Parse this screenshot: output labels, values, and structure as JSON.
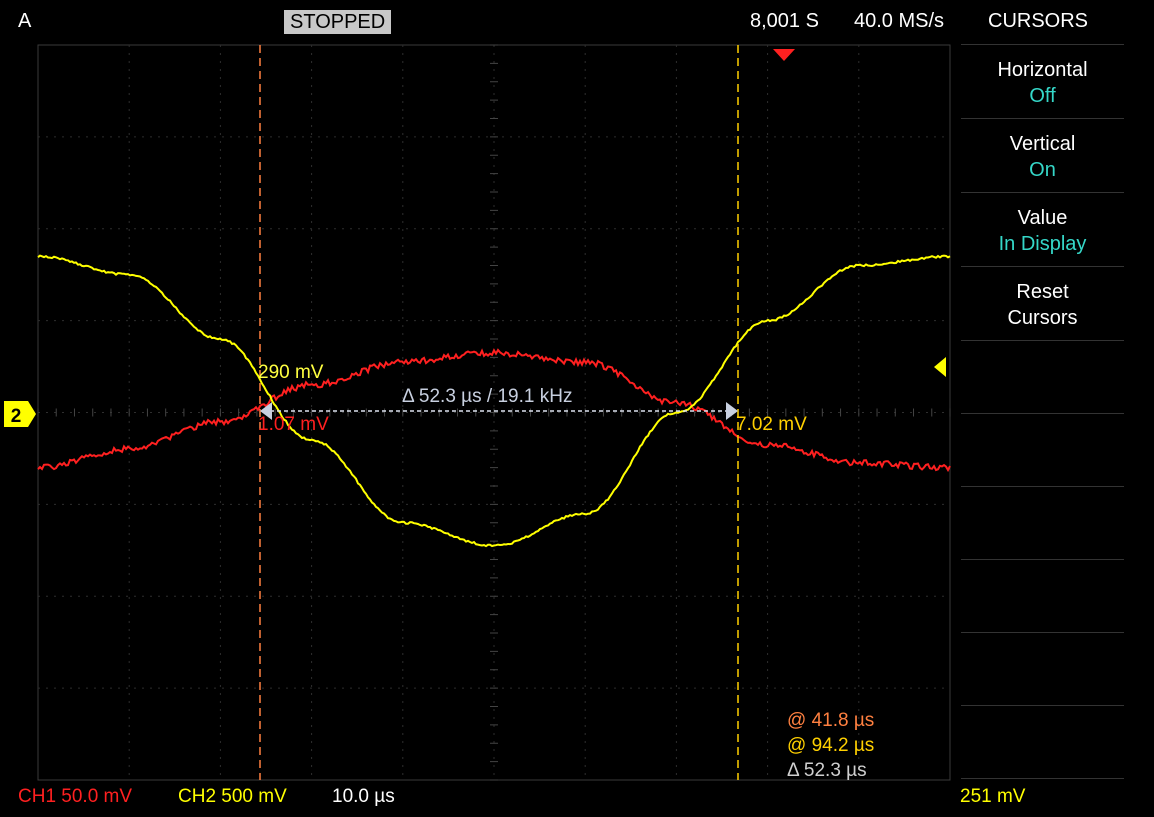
{
  "header": {
    "trigger_mode": "A",
    "run_state": "STOPPED",
    "sample_count": "8,001 S",
    "sample_rate": "40.0 MS/s",
    "menu_title": "CURSORS"
  },
  "menu": {
    "items": [
      {
        "label": "Horizontal",
        "value": "Off"
      },
      {
        "label": "Vertical",
        "value": "On"
      },
      {
        "label": "Value",
        "value": "In Display"
      },
      {
        "label": "Reset",
        "value": "Cursors"
      }
    ]
  },
  "readouts": {
    "cursor1_ch2": "290 mV",
    "cursor1_ch1": "1.07 mV",
    "cursor2_ch1": "7.02 mV",
    "delta_line": "Δ 52.3 µs / 19.1 kHz",
    "cursor1_time": "@ 41.8 µs",
    "cursor2_time": "@ 94.2 µs",
    "delta_time": "Δ 52.3 µs"
  },
  "footer": {
    "ch1_scale": "CH1 50.0 mV",
    "ch2_scale": "CH2 500 mV",
    "timebase": "10.0 µs",
    "trigger_level": "251 mV"
  },
  "channel_marker": "2",
  "colors": {
    "ch1": "#ff2020",
    "ch2": "#ffff00",
    "menu_value": "#35d7c8",
    "cursor1": "#ff8040",
    "cursor2": "#ffd000",
    "delta": "#c8d0e0"
  },
  "chart_data": {
    "type": "line",
    "series": [
      {
        "name": "CH1",
        "shape": "sine peak at center",
        "x_divisions": [
          0,
          1,
          2,
          3,
          4,
          5,
          6,
          7,
          8,
          9,
          10
        ],
        "y_divisions": [
          -0.6,
          -0.4,
          -0.1,
          0.3,
          0.55,
          0.65,
          0.55,
          0.1,
          -0.35,
          -0.55,
          -0.6
        ]
      },
      {
        "name": "CH2",
        "shape": "cosine trough at center",
        "x_divisions": [
          0,
          1,
          2,
          3,
          4,
          5,
          6,
          7,
          8,
          9,
          10
        ],
        "y_divisions": [
          1.7,
          1.5,
          0.8,
          -0.3,
          -1.2,
          -1.45,
          -1.1,
          0.0,
          1.0,
          1.6,
          1.7
        ]
      }
    ],
    "grid": true,
    "divisions_x": 10,
    "divisions_y": 8
  }
}
